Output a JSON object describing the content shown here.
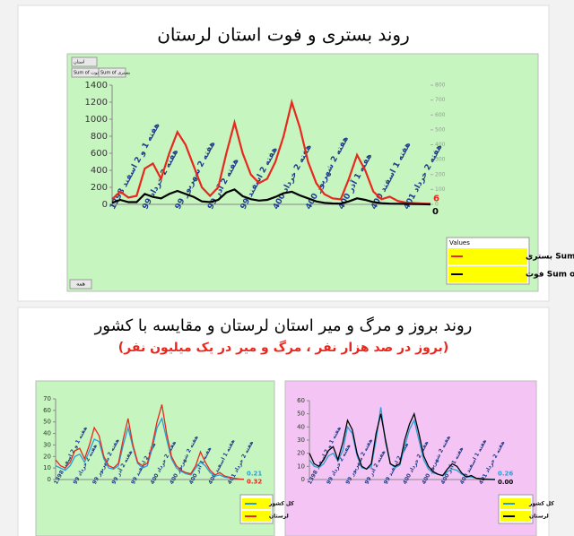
{
  "chart_data": [
    {
      "type": "line",
      "title": "روند بستری و فوت استان لرستان",
      "buttons": [
        "استان",
        "Sum of فوت",
        "Sum of بستری"
      ],
      "footer_button": "همه",
      "legend_title": "Values",
      "categories": [
        "هفته 1 و 2 اسفند 1398",
        null,
        null,
        null,
        "هفته 2 خرداد 99",
        null,
        null,
        null,
        "هفته 2 شهریور 99",
        null,
        null,
        null,
        "هفته 2 آذر 99",
        null,
        null,
        null,
        "هفته 2 اسفند 99",
        null,
        null,
        null,
        "هفته 2 خرداد 400",
        null,
        null,
        null,
        "هفته 2 شهریور 400",
        null,
        null,
        null,
        "هفته 1 آذر 400",
        null,
        null,
        null,
        "هفته 1 اسفند 400",
        null,
        null,
        null,
        "هفته 2 خرداد 401",
        null,
        null,
        null
      ],
      "ylim": [
        0,
        1400
      ],
      "yticks": [
        0,
        200,
        400,
        600,
        800,
        1000,
        1200,
        1400
      ],
      "y2lim": [
        0,
        800
      ],
      "y2ticks": [
        0,
        100,
        200,
        300,
        400,
        500,
        600,
        700,
        800
      ],
      "legend": "lower-right",
      "series": [
        {
          "name": "Sum of بستری",
          "color": "#e8281e",
          "values": [
            60,
            150,
            80,
            100,
            420,
            480,
            300,
            600,
            850,
            700,
            450,
            200,
            100,
            200,
            600,
            960,
            600,
            350,
            250,
            300,
            500,
            800,
            1200,
            900,
            500,
            250,
            120,
            70,
            60,
            300,
            580,
            400,
            150,
            60,
            90,
            40,
            20,
            15,
            10,
            6
          ]
        },
        {
          "name": "Sum of فوت",
          "color": "#000000",
          "axis": "y2",
          "values": [
            10,
            30,
            15,
            15,
            70,
            50,
            40,
            70,
            90,
            70,
            50,
            20,
            15,
            30,
            80,
            100,
            55,
            35,
            25,
            30,
            50,
            75,
            85,
            60,
            40,
            20,
            10,
            6,
            5,
            20,
            40,
            30,
            15,
            8,
            5,
            4,
            3,
            2,
            1,
            0
          ]
        }
      ]
    },
    {
      "type": "line",
      "title": "روند بروز و مرگ و میر استان لرستان و مقایسه با کشور",
      "subtitle": "(بروز در صد هزار نفر ، مرگ و میر در یک میلیون نفر)",
      "categories": [
        "هفته 1 و 2 اسفند 1398",
        null,
        null,
        null,
        "هفته 2 خرداد 99",
        null,
        null,
        null,
        "هفته 2 شهریور 99",
        null,
        null,
        null,
        "هفته 2 آذر 99",
        null,
        null,
        null,
        "هفته 2 اسفند 99",
        null,
        null,
        null,
        "هفته 2 خرداد 400",
        null,
        null,
        null,
        "هفته 2 شهریور 400",
        null,
        null,
        null,
        "هفته 1 آذر 400",
        null,
        null,
        null,
        "هفته 1 اسفند 400",
        null,
        null,
        null,
        "هفته 2 خرداد 401",
        null,
        null,
        null
      ],
      "ylim": [
        0,
        70
      ],
      "yticks": [
        0,
        10,
        20,
        30,
        40,
        50,
        60,
        70
      ],
      "legend": "lower-right",
      "series": [
        {
          "name": "کل کشور",
          "color": "#2a9fd6",
          "values": [
            12,
            10,
            8,
            12,
            20,
            22,
            15,
            25,
            35,
            33,
            18,
            10,
            9,
            12,
            30,
            45,
            28,
            14,
            10,
            12,
            27,
            45,
            53,
            35,
            18,
            10,
            7,
            5,
            4,
            10,
            15,
            12,
            6,
            3,
            4,
            2,
            1.5,
            1,
            0.4,
            0.21
          ]
        },
        {
          "name": "لرستان",
          "color": "#e8281e",
          "values": [
            17,
            12,
            10,
            15,
            25,
            27,
            18,
            30,
            45,
            38,
            20,
            12,
            10,
            14,
            35,
            53,
            30,
            15,
            12,
            14,
            30,
            50,
            65,
            40,
            20,
            12,
            8,
            6,
            5,
            12,
            24,
            15,
            8,
            4,
            6,
            3,
            2,
            1,
            0.5,
            0.32
          ]
        }
      ]
    },
    {
      "type": "line",
      "categories": [
        "هفته 1 و 2 اسفند 1398",
        null,
        null,
        null,
        "هفته 2 خرداد 99",
        null,
        null,
        null,
        "هفته 2 شهریور 99",
        null,
        null,
        null,
        "هفته 2 آذر 99",
        null,
        null,
        null,
        "هفته 2 اسفند 99",
        null,
        null,
        null,
        "هفته 2 خرداد 400",
        null,
        null,
        null,
        "هفته 2 شهریور 400",
        null,
        null,
        null,
        "هفته 1 آذر 400",
        null,
        null,
        null,
        "هفته 1 اسفند 400",
        null,
        null,
        null,
        "هفته 2 خرداد 401",
        null,
        null,
        null
      ],
      "ylim": [
        0,
        60
      ],
      "yticks": [
        0,
        10,
        20,
        30,
        40,
        50,
        60
      ],
      "legend": "lower-right",
      "series": [
        {
          "name": "کل کشور",
          "color": "#2a9fd6",
          "values": [
            15,
            10,
            9,
            12,
            18,
            20,
            14,
            22,
            40,
            35,
            18,
            9,
            8,
            10,
            30,
            55,
            28,
            12,
            9,
            11,
            25,
            38,
            45,
            30,
            15,
            8,
            5,
            4,
            3,
            6,
            8,
            7,
            4,
            2,
            2,
            1,
            0.8,
            0.5,
            0.3,
            0.26
          ]
        },
        {
          "name": "لرستان",
          "color": "#000000",
          "values": [
            20,
            12,
            10,
            15,
            22,
            25,
            15,
            28,
            45,
            38,
            20,
            10,
            8,
            12,
            35,
            50,
            30,
            12,
            10,
            12,
            30,
            42,
            50,
            35,
            18,
            10,
            6,
            4,
            3,
            8,
            12,
            10,
            5,
            2,
            3,
            1,
            0.5,
            0.2,
            0.1,
            0
          ],
          "value_labels": [
            null,
            null,
            null,
            null,
            null,
            null,
            null,
            null,
            null,
            null,
            null,
            null,
            null,
            null,
            null,
            null,
            null,
            null,
            null,
            null,
            null,
            null,
            null,
            null,
            null,
            null,
            null,
            null,
            null,
            null,
            null,
            null,
            null,
            null,
            null,
            null,
            null,
            null,
            null,
            "0.00"
          ]
        }
      ]
    }
  ]
}
